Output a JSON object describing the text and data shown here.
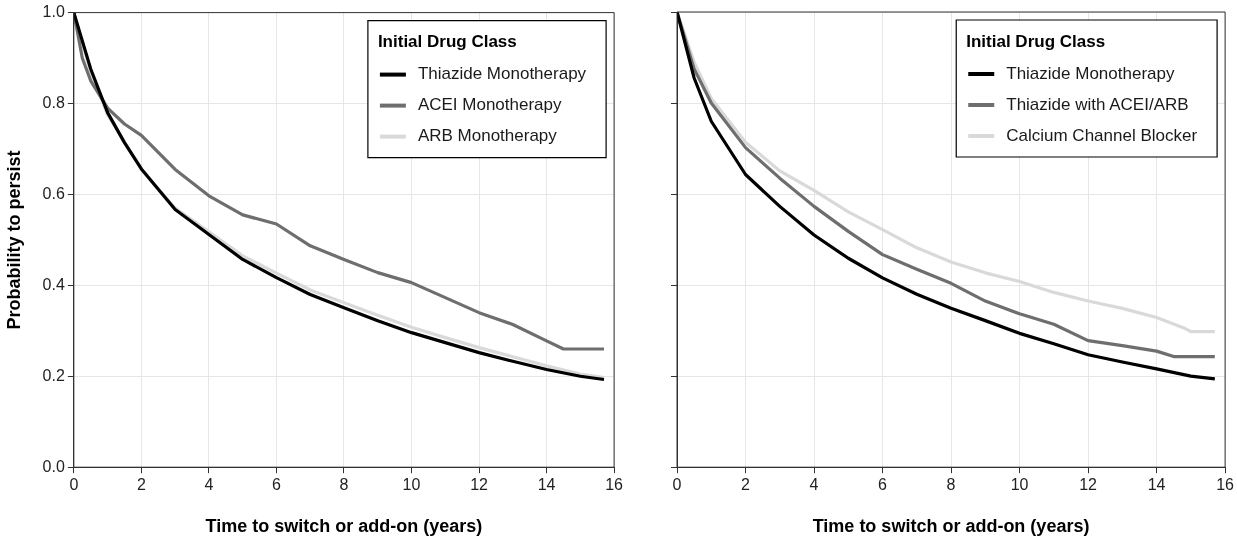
{
  "chart_data": [
    {
      "type": "line",
      "xlabel": "Time to switch or add-on (years)",
      "ylabel": "Probability to persist",
      "legend_title": "Initial Drug Class",
      "legend": "top right",
      "grid": true,
      "marker": "none",
      "line_style": "solid",
      "xlim": [
        0,
        16
      ],
      "xticks": [
        0,
        2,
        4,
        6,
        8,
        10,
        12,
        14,
        16
      ],
      "ylim": [
        0,
        1
      ],
      "yticks": [
        {
          "value": 0,
          "label": "0.0"
        },
        0.2,
        0.4,
        0.6,
        0.8,
        {
          "value": 1,
          "label": "1.0"
        }
      ],
      "series": [
        {
          "name": "Thiazide Monotherapy",
          "color": "#000000",
          "x": [
            0,
            0.5,
            1,
            1.5,
            2,
            3,
            4,
            5,
            6,
            7,
            8,
            9,
            10,
            11,
            12,
            13,
            14,
            15,
            15.7
          ],
          "values": [
            1,
            0.876,
            0.78,
            0.714,
            0.656,
            0.567,
            0.512,
            0.457,
            0.417,
            0.38,
            0.351,
            0.322,
            0.296,
            0.274,
            0.252,
            0.233,
            0.215,
            0.2,
            0.193
          ]
        },
        {
          "name": "ACEI Monotherapy",
          "color": "#6e6e6e",
          "x": [
            0,
            0.25,
            0.5,
            1,
            1.5,
            2,
            3,
            4,
            5,
            6,
            7,
            8,
            9,
            10,
            11,
            12,
            13,
            14,
            14.5,
            15.7
          ],
          "values": [
            1,
            0.9,
            0.85,
            0.79,
            0.755,
            0.73,
            0.655,
            0.597,
            0.555,
            0.535,
            0.487,
            0.457,
            0.428,
            0.406,
            0.373,
            0.34,
            0.314,
            0.278,
            0.26,
            0.26
          ]
        },
        {
          "name": "ARB Monotherapy",
          "color": "#d9d9d9",
          "x": [
            0,
            0.5,
            1,
            2,
            3,
            4,
            5,
            6,
            7,
            8,
            9,
            10,
            11,
            12,
            13,
            14,
            15,
            15.7
          ],
          "values": [
            1,
            0.87,
            0.775,
            0.655,
            0.57,
            0.518,
            0.465,
            0.427,
            0.39,
            0.362,
            0.334,
            0.308,
            0.285,
            0.263,
            0.243,
            0.223,
            0.205,
            0.197
          ]
        }
      ]
    },
    {
      "type": "line",
      "xlabel": "Time to switch or add-on (years)",
      "legend_title": "Initial Drug Class",
      "legend": "top right",
      "grid": true,
      "marker": "none",
      "line_style": "solid",
      "tick_labels": "x",
      "xlim": [
        0,
        16
      ],
      "xticks": [
        0,
        2,
        4,
        6,
        8,
        10,
        12,
        14,
        16
      ],
      "ylim": [
        0,
        1
      ],
      "yticks": [
        0,
        0.2,
        0.4,
        0.6,
        0.8,
        1
      ],
      "series": [
        {
          "name": "Thiazide Monotherapy",
          "color": "#000000",
          "x": [
            0,
            0.5,
            1,
            2,
            3,
            4,
            5,
            6,
            7,
            8,
            9,
            10,
            11,
            12,
            13,
            14,
            15,
            15.7
          ],
          "values": [
            1,
            0.855,
            0.76,
            0.643,
            0.573,
            0.51,
            0.459,
            0.416,
            0.38,
            0.349,
            0.322,
            0.294,
            0.271,
            0.247,
            0.231,
            0.216,
            0.2,
            0.194
          ]
        },
        {
          "name": "Thiazide with ACEI/ARB",
          "color": "#6e6e6e",
          "x": [
            0,
            0.5,
            1,
            2,
            3,
            4,
            5,
            6,
            7,
            8,
            9,
            10,
            11,
            12,
            13,
            14,
            14.5,
            15.7
          ],
          "values": [
            1,
            0.875,
            0.8,
            0.702,
            0.635,
            0.573,
            0.518,
            0.467,
            0.435,
            0.404,
            0.365,
            0.337,
            0.314,
            0.278,
            0.267,
            0.255,
            0.243,
            0.243
          ]
        },
        {
          "name": "Calcium Channel Blocker",
          "color": "#d9d9d9",
          "x": [
            0,
            0.5,
            1,
            2,
            3,
            4,
            5,
            6,
            7,
            8,
            9,
            10,
            11,
            12,
            13,
            14,
            14.8,
            15,
            15.7
          ],
          "values": [
            1,
            0.89,
            0.81,
            0.714,
            0.651,
            0.608,
            0.561,
            0.522,
            0.482,
            0.451,
            0.427,
            0.408,
            0.384,
            0.365,
            0.349,
            0.329,
            0.306,
            0.298,
            0.298
          ]
        }
      ]
    }
  ]
}
